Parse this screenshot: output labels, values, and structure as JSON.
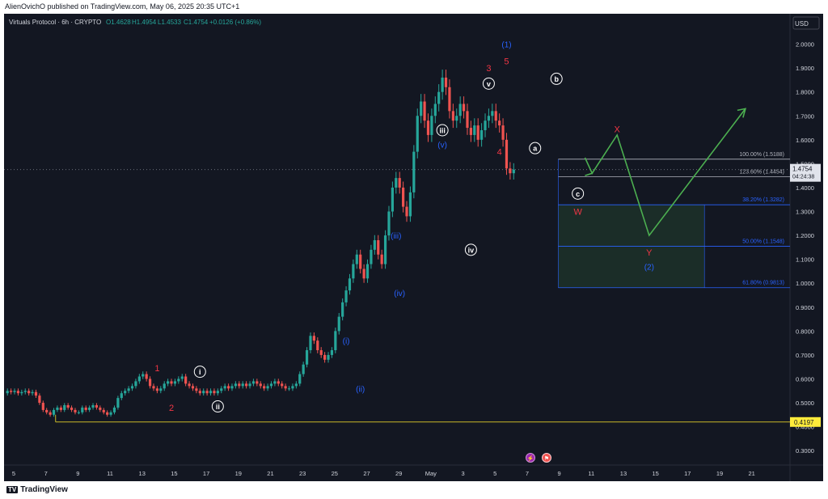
{
  "header": {
    "published": "AlienOvichO published on TradingView.com, May 06, 2025 20:35 UTC+1"
  },
  "footer": {
    "brand": "TradingView"
  },
  "chart_data": {
    "type": "candlestick",
    "symbol_line": "Virtuals Protocol · 6h · CRYPTO",
    "ohlc": {
      "O": "O1.4628",
      "H": "H1.4954",
      "L": "L1.4533",
      "C": "C1.4754",
      "change": "+0.0126 (+0.86%)"
    },
    "currency": "USD",
    "ylim": [
      0.26,
      2.1
    ],
    "y_ticks": [
      "2.0000",
      "1.9000",
      "1.8000",
      "1.7000",
      "1.6000",
      "1.5000",
      "1.4000",
      "1.3000",
      "1.2000",
      "1.1000",
      "1.0000",
      "0.9000",
      "0.8000",
      "0.7000",
      "0.6000",
      "0.5000",
      "0.4000",
      "0.3000"
    ],
    "x_ticks": [
      "5",
      "7",
      "9",
      "11",
      "13",
      "15",
      "17",
      "19",
      "21",
      "23",
      "25",
      "27",
      "29",
      "May",
      "3",
      "5",
      "7",
      "9",
      "11",
      "13",
      "15",
      "17",
      "19",
      "21"
    ],
    "last_price": {
      "value": "1.4754",
      "countdown": "04:24:38"
    },
    "support_line": {
      "value": 0.4197,
      "label": "0.4197"
    },
    "fib_levels": [
      {
        "label": "100.00% (1.5188)",
        "value": 1.5188,
        "color": "#b2b5be"
      },
      {
        "label": "123.60% (1.4454)",
        "value": 1.4454,
        "color": "#b2b5be"
      },
      {
        "label": "38.20% (1.3282)",
        "value": 1.3282,
        "color": "#2962ff"
      },
      {
        "label": "50.00% (1.1548)",
        "value": 1.1548,
        "color": "#2962ff"
      },
      {
        "label": "61.80% (0.9813)",
        "value": 0.9813,
        "color": "#2962ff"
      }
    ],
    "target_zone": {
      "from": 0.9813,
      "to": 1.3282
    },
    "closes": [
      0.55,
      0.545,
      0.55,
      0.54,
      0.545,
      0.55,
      0.54,
      0.545,
      0.53,
      0.5,
      0.47,
      0.46,
      0.45,
      0.47,
      0.48,
      0.47,
      0.49,
      0.48,
      0.47,
      0.46,
      0.46,
      0.48,
      0.47,
      0.48,
      0.49,
      0.48,
      0.47,
      0.46,
      0.45,
      0.46,
      0.48,
      0.52,
      0.54,
      0.55,
      0.56,
      0.57,
      0.59,
      0.61,
      0.62,
      0.6,
      0.57,
      0.56,
      0.55,
      0.56,
      0.58,
      0.59,
      0.58,
      0.59,
      0.6,
      0.61,
      0.58,
      0.57,
      0.56,
      0.55,
      0.54,
      0.55,
      0.54,
      0.55,
      0.54,
      0.55,
      0.56,
      0.57,
      0.56,
      0.57,
      0.58,
      0.57,
      0.58,
      0.57,
      0.58,
      0.59,
      0.58,
      0.57,
      0.56,
      0.57,
      0.58,
      0.59,
      0.58,
      0.57,
      0.56,
      0.56,
      0.57,
      0.58,
      0.62,
      0.66,
      0.72,
      0.78,
      0.76,
      0.72,
      0.7,
      0.68,
      0.7,
      0.72,
      0.8,
      0.86,
      0.92,
      0.97,
      1.02,
      1.08,
      1.12,
      1.06,
      1.02,
      1.08,
      1.14,
      1.18,
      1.12,
      1.08,
      1.2,
      1.3,
      1.4,
      1.44,
      1.4,
      1.32,
      1.28,
      1.38,
      1.55,
      1.7,
      1.76,
      1.68,
      1.62,
      1.7,
      1.75,
      1.8,
      1.86,
      1.82,
      1.72,
      1.68,
      1.7,
      1.75,
      1.72,
      1.65,
      1.62,
      1.66,
      1.6,
      1.64,
      1.68,
      1.7,
      1.72,
      1.68,
      1.66,
      1.6,
      1.48,
      1.46,
      1.4754
    ],
    "annotations": [
      {
        "text": "(1)",
        "color": "#2962ff",
        "style": "plain",
        "x": 140,
        "y": 2.0
      },
      {
        "text": "3",
        "color": "#f23645",
        "style": "plain",
        "x": 135,
        "y": 1.9
      },
      {
        "text": "5",
        "color": "#f23645",
        "style": "plain",
        "x": 140,
        "y": 1.93
      },
      {
        "text": "v",
        "color": "#ffffff",
        "style": "circle",
        "x": 135,
        "y": 1.835
      },
      {
        "text": "b",
        "color": "#ffffff",
        "style": "circle",
        "x": 154,
        "y": 1.855
      },
      {
        "text": "a",
        "color": "#ffffff",
        "style": "circle",
        "x": 148,
        "y": 1.565
      },
      {
        "text": "4",
        "color": "#f23645",
        "style": "plain",
        "x": 138,
        "y": 1.55
      },
      {
        "text": "iii",
        "color": "#ffffff",
        "style": "circle",
        "x": 122,
        "y": 1.64
      },
      {
        "text": "(v)",
        "color": "#2962ff",
        "style": "plain",
        "x": 122,
        "y": 1.58
      },
      {
        "text": "iv",
        "color": "#ffffff",
        "style": "circle",
        "x": 130,
        "y": 1.14
      },
      {
        "text": "(iii)",
        "color": "#2962ff",
        "style": "plain",
        "x": 109,
        "y": 1.2
      },
      {
        "text": "(iv)",
        "color": "#2962ff",
        "style": "plain",
        "x": 110,
        "y": 0.96
      },
      {
        "text": "(i)",
        "color": "#2962ff",
        "style": "plain",
        "x": 95,
        "y": 0.76
      },
      {
        "text": "(ii)",
        "color": "#2962ff",
        "style": "plain",
        "x": 99,
        "y": 0.56
      },
      {
        "text": "c",
        "color": "#ffffff",
        "style": "circle",
        "x": 160,
        "y": 1.375
      },
      {
        "text": "W",
        "color": "#f23645",
        "style": "plain",
        "x": 160,
        "y": 1.3
      },
      {
        "text": "X",
        "color": "#f23645",
        "style": "plain",
        "x": 171,
        "y": 1.645
      },
      {
        "text": "Y",
        "color": "#f23645",
        "style": "plain",
        "x": 180,
        "y": 1.13
      },
      {
        "text": "(2)",
        "color": "#2962ff",
        "style": "plain",
        "x": 180,
        "y": 1.07
      },
      {
        "text": "1",
        "color": "#f23645",
        "style": "plain",
        "x": 42,
        "y": 0.645
      },
      {
        "text": "2",
        "color": "#f23645",
        "style": "plain",
        "x": 46,
        "y": 0.48
      },
      {
        "text": "i",
        "color": "#ffffff",
        "style": "circle",
        "x": 54,
        "y": 0.63
      },
      {
        "text": "ii",
        "color": "#ffffff",
        "style": "circle",
        "x": 59,
        "y": 0.485
      }
    ],
    "projection": [
      [
        162,
        1.45
      ],
      [
        164,
        1.46
      ],
      [
        162,
        1.525
      ],
      [
        164,
        1.46
      ],
      [
        171,
        1.62
      ],
      [
        180,
        1.2
      ],
      [
        207,
        1.73
      ]
    ],
    "colors": {
      "up": "#26a69a",
      "down": "#ef5350",
      "projection": "#4caf50",
      "support": "#c9b827",
      "zone": "rgba(76,175,80,0.15)"
    }
  }
}
